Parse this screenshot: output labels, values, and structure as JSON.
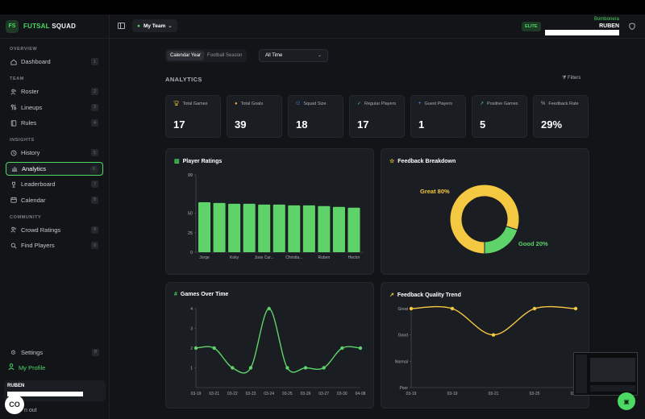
{
  "brand": {
    "badge": "FS",
    "name_a": "FUTSAL",
    "name_b": "SQUAD"
  },
  "sidebar": {
    "sections": [
      {
        "head": "OVERVIEW",
        "items": [
          {
            "label": "Dashboard",
            "key": "1",
            "icon": "home-icon"
          }
        ]
      },
      {
        "head": "TEAM",
        "items": [
          {
            "label": "Roster",
            "key": "2",
            "icon": "users-icon"
          },
          {
            "label": "Lineups",
            "key": "3",
            "icon": "lineup-icon"
          },
          {
            "label": "Rules",
            "key": "4",
            "icon": "book-icon"
          }
        ]
      },
      {
        "head": "INSIGHTS",
        "items": [
          {
            "label": "History",
            "key": "5",
            "icon": "history-icon"
          },
          {
            "label": "Analytics",
            "key": "6",
            "icon": "bar-chart-icon",
            "active": true
          },
          {
            "label": "Leaderboard",
            "key": "7",
            "icon": "trophy-icon"
          },
          {
            "label": "Calendar",
            "key": "8",
            "icon": "calendar-icon"
          }
        ]
      },
      {
        "head": "COMMUNITY",
        "items": [
          {
            "label": "Crowd Ratings",
            "key": "9",
            "icon": "users-icon"
          },
          {
            "label": "Find Players",
            "key": "0",
            "icon": "search-icon"
          }
        ]
      }
    ],
    "settings": {
      "label": "Settings",
      "key": "8"
    },
    "profile": "My Profile",
    "user_name": "RUBEN",
    "logout": "n out"
  },
  "header": {
    "team": "My Team",
    "tier": "ELITE",
    "club": "Bombonera",
    "user": "RUBEN"
  },
  "controls": {
    "seg": [
      "Calendar Year",
      "Football Season"
    ],
    "range": "All Time"
  },
  "analytics_title": "ANALYTICS",
  "filters": "Filters",
  "stats": [
    {
      "label": "Total Games",
      "value": "17",
      "icon": "trophy-icon",
      "color": "#f5c842"
    },
    {
      "label": "Total Goals",
      "value": "39",
      "icon": "ball-icon",
      "color": "#f5a742"
    },
    {
      "label": "Squad Size",
      "value": "18",
      "icon": "users-icon",
      "color": "#5aa0ff"
    },
    {
      "label": "Regular Players",
      "value": "17",
      "icon": "user-check-icon",
      "color": "#4cd964"
    },
    {
      "label": "Guest Players",
      "value": "1",
      "icon": "user-plus-icon",
      "color": "#5aa0ff"
    },
    {
      "label": "Positive Games",
      "value": "5",
      "icon": "trend-up-icon",
      "color": "#4cd964"
    },
    {
      "label": "Feedback Rate",
      "value": "29%",
      "icon": "percent-icon",
      "color": "#aab0b8"
    }
  ],
  "cards": {
    "ratings": "Player Ratings",
    "feedback": "Feedback Breakdown",
    "games": "Games Over Time",
    "quality": "Feedback Quality Trend"
  },
  "chart_data": [
    {
      "type": "bar",
      "title": "Player Ratings",
      "categories": [
        "Jorge",
        "",
        "Koky",
        "",
        "Jose Car...",
        "",
        "Christia...",
        "",
        "Ruben",
        "",
        "Hector"
      ],
      "values": [
        64,
        63,
        62,
        62,
        61,
        61,
        60,
        60,
        59,
        58,
        57
      ],
      "yticks": [
        0,
        25,
        50,
        99
      ],
      "ylim": [
        0,
        99
      ],
      "color": "#5ed36a"
    },
    {
      "type": "pie",
      "title": "Feedback Breakdown",
      "slices": [
        {
          "label": "Great",
          "value": 80,
          "text": "Great 80%",
          "color": "#f5c842"
        },
        {
          "label": "Good",
          "value": 20,
          "text": "Good 20%",
          "color": "#5ed36a"
        }
      ]
    },
    {
      "type": "line",
      "title": "Games Over Time",
      "x": [
        "03-19",
        "03-21",
        "03-22",
        "03-23",
        "03-24",
        "03-25",
        "03-26",
        "03-27",
        "03-30",
        "04-08"
      ],
      "points": [
        2,
        2,
        1,
        1,
        4,
        1,
        1,
        1,
        2,
        2
      ],
      "yticks": [
        1,
        2,
        3,
        4
      ],
      "ylim": [
        0,
        4
      ],
      "color": "#5ed36a"
    },
    {
      "type": "line",
      "title": "Feedback Quality Trend",
      "x": [
        "03-19",
        "03-19",
        "03-21",
        "03-25",
        "03-25"
      ],
      "points": [
        4,
        4,
        3,
        4,
        4
      ],
      "yticks": [
        "Poor",
        "Normal",
        "Good",
        "Great"
      ],
      "ylim": [
        1,
        4
      ],
      "color": "#f5c842"
    }
  ]
}
